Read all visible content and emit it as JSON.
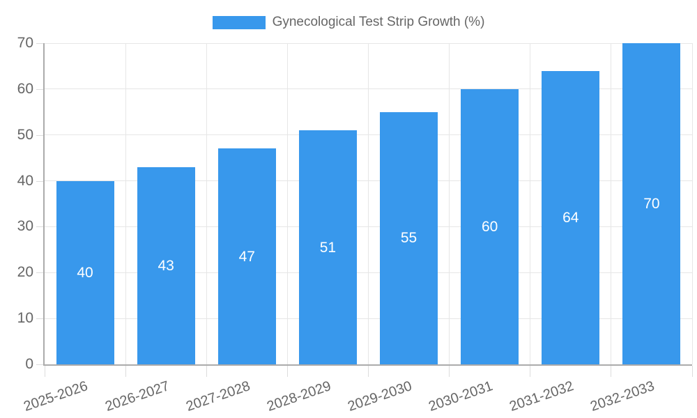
{
  "legend": {
    "label": "Gynecological Test Strip Growth (%)"
  },
  "chart_data": {
    "type": "bar",
    "title": "Gynecological Test Strip Growth (%)",
    "categories": [
      "2025-2026",
      "2026-2027",
      "2027-2028",
      "2028-2029",
      "2029-2030",
      "2030-2031",
      "2031-2032",
      "2032-2033"
    ],
    "values": [
      40,
      43,
      47,
      51,
      55,
      60,
      64,
      70
    ],
    "xlabel": "",
    "ylabel": "",
    "ylim": [
      0,
      70
    ],
    "yticks": [
      0,
      10,
      20,
      30,
      40,
      50,
      60,
      70
    ],
    "grid": true,
    "legend_position": "top-center",
    "value_labels": "inside-center",
    "x_tick_rotation_deg": -19,
    "colors": {
      "bar": "#3898ec",
      "gridline": "#e6e6e6",
      "tick_mark": "#dcdcdc",
      "axis_border": "#ababab",
      "tick_text": "#666666",
      "legend_text": "#666666",
      "value_label_text": "#ffffff",
      "background": "#ffffff"
    }
  }
}
